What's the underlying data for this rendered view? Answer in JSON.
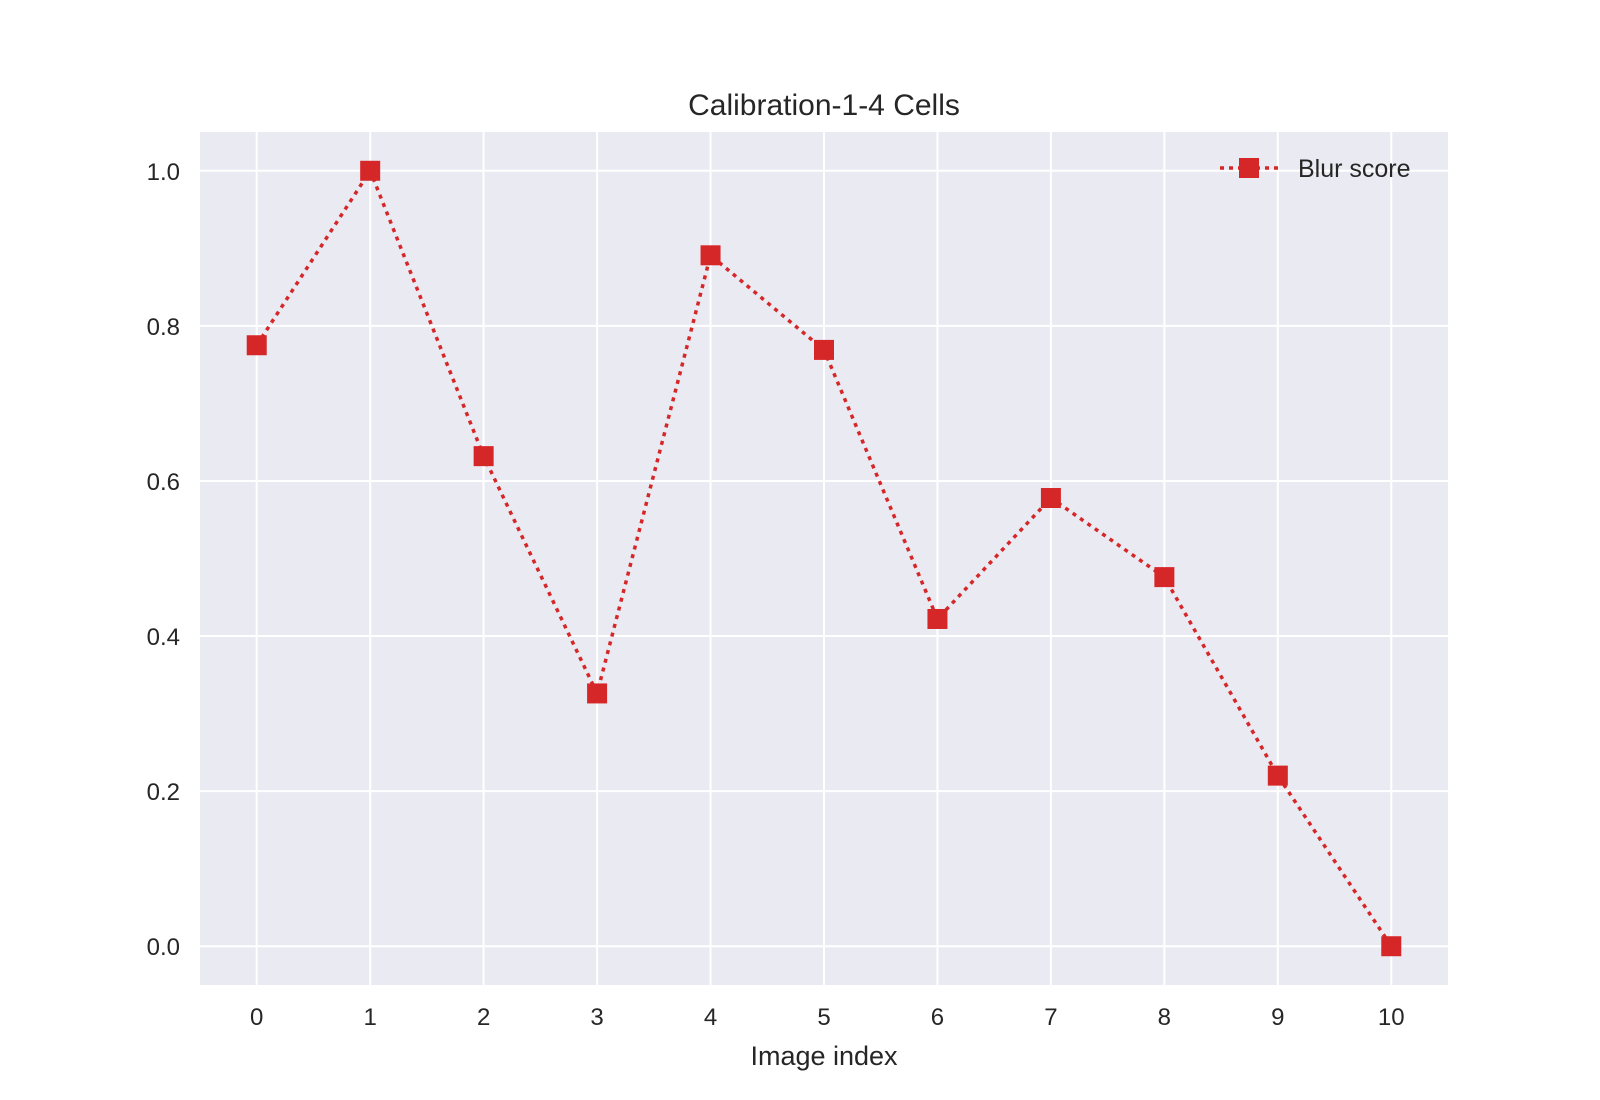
{
  "chart_data": {
    "type": "line",
    "title": "Calibration-1-4 Cells",
    "xlabel": "Image index",
    "ylabel": "",
    "x": [
      0,
      1,
      2,
      3,
      4,
      5,
      6,
      7,
      8,
      9,
      10
    ],
    "series": [
      {
        "name": "Blur score",
        "values": [
          0.775,
          1.0,
          0.632,
          0.326,
          0.891,
          0.769,
          0.422,
          0.578,
          0.476,
          0.22,
          0.0
        ],
        "color": "#d62728",
        "line_style": "dotted",
        "marker": "square"
      }
    ],
    "xlim": [
      -0.5,
      10.5
    ],
    "ylim": [
      -0.05,
      1.05
    ],
    "xticks": [
      0,
      1,
      2,
      3,
      4,
      5,
      6,
      7,
      8,
      9,
      10
    ],
    "xtick_labels": [
      "0",
      "1",
      "2",
      "3",
      "4",
      "5",
      "6",
      "7",
      "8",
      "9",
      "10"
    ],
    "yticks": [
      0.0,
      0.2,
      0.4,
      0.6,
      0.8,
      1.0
    ],
    "ytick_labels": [
      "0.0",
      "0.2",
      "0.4",
      "0.6",
      "0.8",
      "1.0"
    ],
    "grid": true,
    "legend_position": "top-right",
    "background_color": "#eaeaf2",
    "grid_color": "#ffffff"
  }
}
